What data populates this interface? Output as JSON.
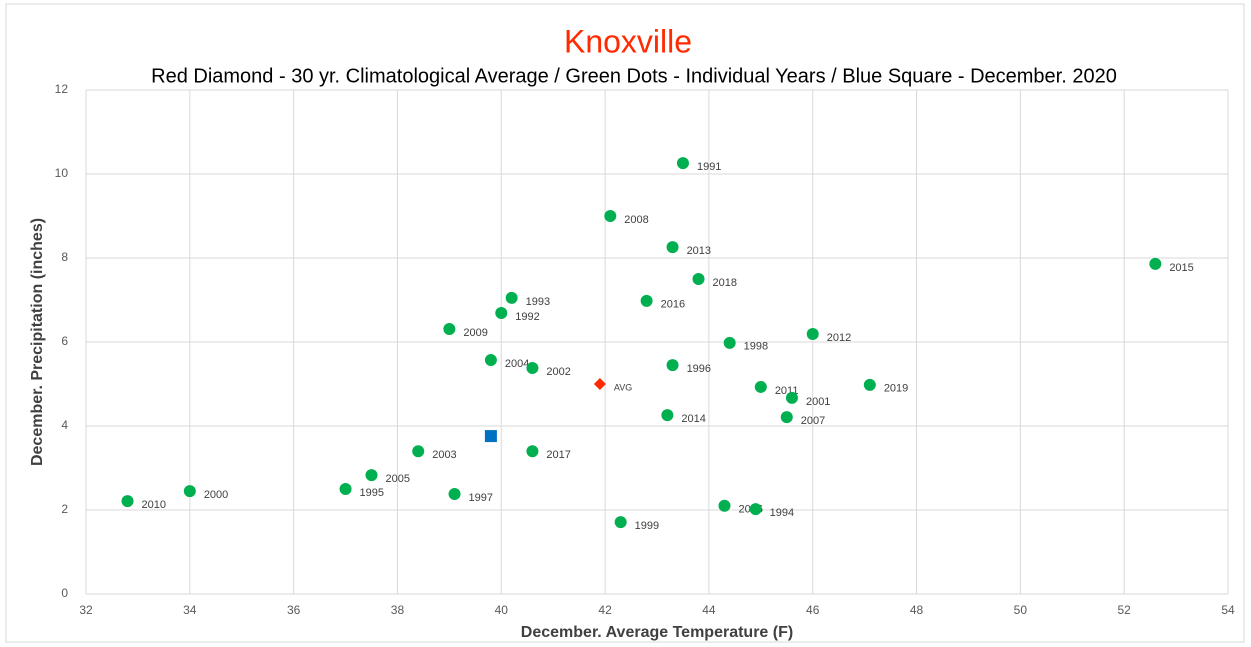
{
  "chart_data": {
    "type": "scatter",
    "title": "Knoxville",
    "subtitle": "Red Diamond - 30 yr. Climatological Average / Green Dots - Individual Years / Blue Square - December. 2020",
    "x_label": "December. Average Temperature (F)",
    "y_label": "December. Precipitation (inches)",
    "xlim": [
      32,
      54
    ],
    "xticks": [
      32,
      34,
      36,
      38,
      40,
      42,
      44,
      46,
      48,
      50,
      52,
      54
    ],
    "ylim": [
      0,
      12
    ],
    "yticks": [
      0,
      2,
      4,
      6,
      8,
      10,
      12
    ],
    "grid": true,
    "series": [
      {
        "color": "#00b050",
        "marker": "circle",
        "labels": [
          "2010",
          "2000",
          "1995",
          "2005",
          "2003",
          "1997",
          "2004",
          "2009",
          "1992",
          "1993",
          "2002",
          "2017",
          "1999",
          "2008",
          "2016",
          "2014",
          "1996",
          "2013",
          "1991",
          "2018",
          "2006",
          "1998",
          "1994",
          "2011",
          "2001",
          "2007",
          "2012",
          "2019",
          "2015"
        ],
        "x": [
          32.8,
          34.0,
          37.0,
          37.5,
          38.4,
          39.1,
          39.8,
          39.0,
          40.0,
          40.2,
          40.6,
          40.6,
          42.3,
          42.1,
          42.8,
          43.2,
          43.3,
          43.3,
          43.5,
          43.8,
          44.3,
          44.4,
          44.9,
          45.0,
          45.6,
          45.5,
          46.0,
          47.1,
          52.6
        ],
        "values": [
          2.21,
          2.45,
          2.5,
          2.83,
          3.4,
          2.38,
          5.57,
          6.31,
          6.69,
          7.05,
          5.38,
          3.4,
          1.71,
          9.0,
          6.98,
          4.26,
          5.45,
          8.26,
          10.26,
          7.5,
          2.1,
          5.98,
          2.02,
          4.93,
          4.67,
          4.21,
          6.19,
          4.98,
          7.86
        ]
      },
      {
        "color": "#ff2a00",
        "marker": "diamond",
        "labels": [
          "AVG"
        ],
        "x": [
          41.9
        ],
        "values": [
          5.0
        ]
      },
      {
        "color": "#0070c0",
        "marker": "square",
        "x": [
          39.8
        ],
        "values": [
          3.76
        ]
      }
    ]
  }
}
